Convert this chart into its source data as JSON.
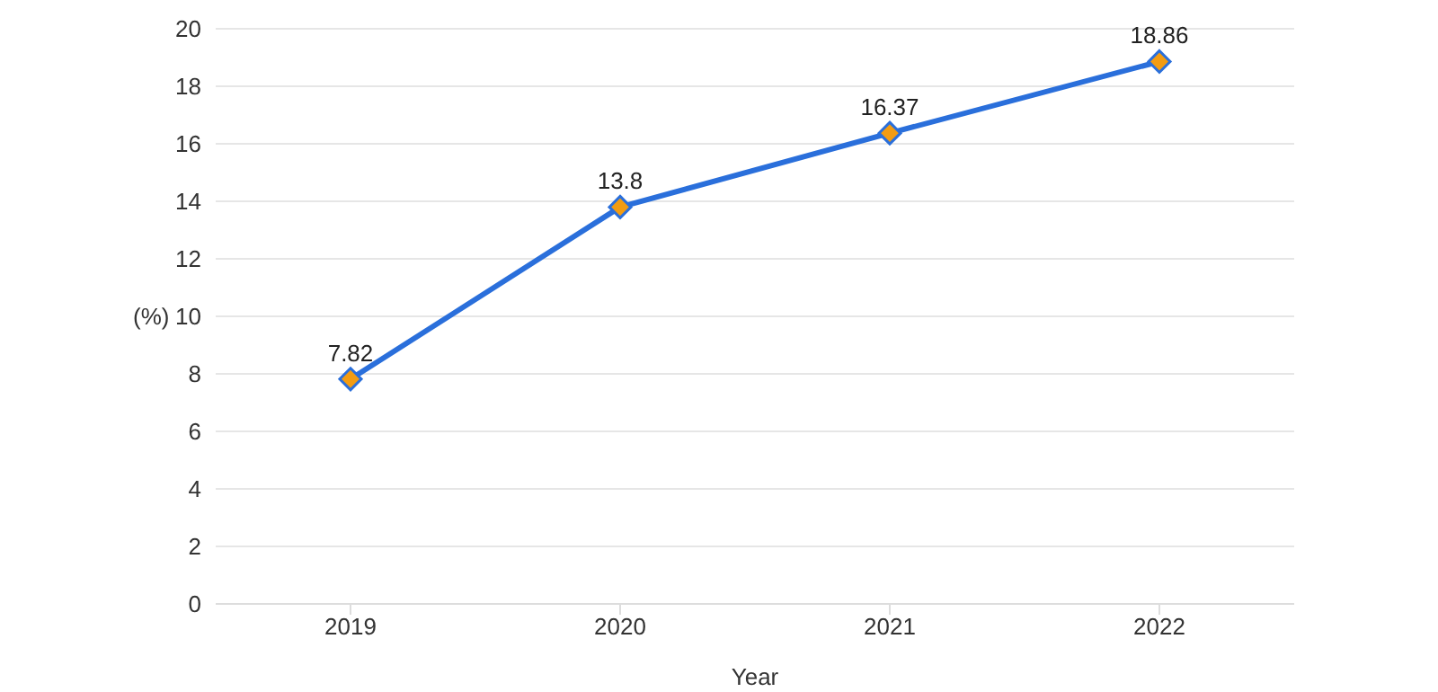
{
  "chart_data": {
    "type": "line",
    "xlabel": "Year",
    "ylabel": "(%)",
    "categories": [
      "2019",
      "2020",
      "2021",
      "2022"
    ],
    "series": [
      {
        "color": "#2a6fdb",
        "values": [
          7.82,
          13.8,
          16.37,
          18.86
        ]
      }
    ],
    "ylim": [
      0,
      20
    ],
    "yticks": [
      0,
      2,
      4,
      6,
      8,
      10,
      12,
      14,
      16,
      18,
      20
    ],
    "grid": "y",
    "marker": "diamond",
    "data_labels": true,
    "legend": false
  }
}
